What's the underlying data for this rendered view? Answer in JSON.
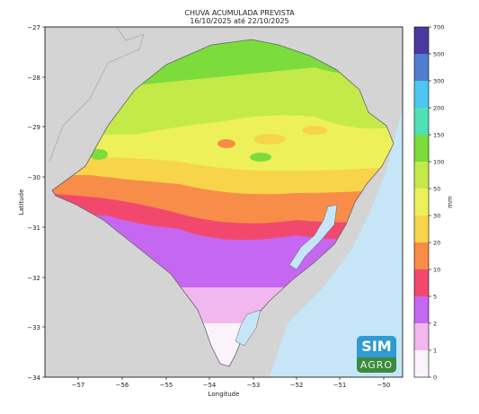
{
  "title": {
    "line1": "CHUVA ACUMULADA PREVISTA",
    "line2": "16/10/2025 até 22/10/2025"
  },
  "axes": {
    "xlabel": "Longitude",
    "ylabel": "Latitude",
    "xticks": [
      "−57",
      "−56",
      "−55",
      "−54",
      "−53",
      "−52",
      "−51",
      "−50"
    ],
    "yticks": [
      "−27",
      "−28",
      "−29",
      "−30",
      "−31",
      "−32",
      "−33",
      "−34"
    ]
  },
  "colorbar": {
    "unit": "mm",
    "levels": [
      "0",
      "1",
      "2",
      "5",
      "10",
      "20",
      "30",
      "50",
      "100",
      "150",
      "200",
      "300",
      "500",
      "700"
    ],
    "colors": [
      "#fbf3fb",
      "#f2b7ef",
      "#c567f0",
      "#f3486e",
      "#f78d48",
      "#f7d44a",
      "#eef05a",
      "#c4ea4a",
      "#7bdc3c",
      "#4fe0b4",
      "#4dc6f2",
      "#4f7ed0",
      "#4a3aa0"
    ]
  },
  "logo": {
    "line1": "SIM",
    "line2": "AGRO"
  },
  "colors": {
    "land_outside": "#d4d4d4",
    "ocean": "#c6e6f7"
  }
}
